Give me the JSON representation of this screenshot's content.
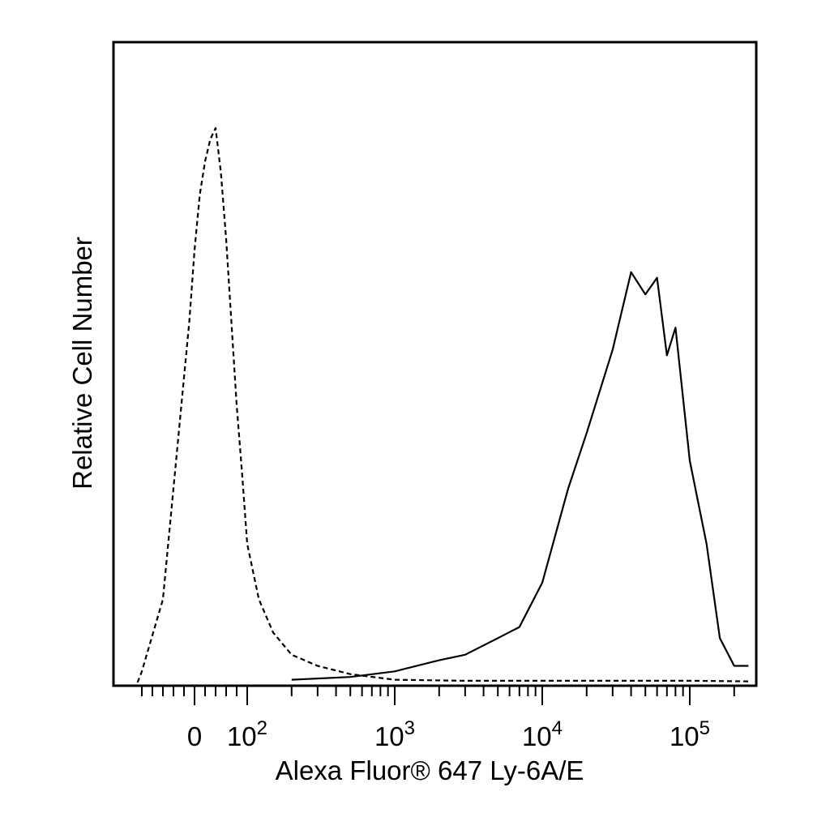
{
  "chart_data": {
    "type": "line",
    "xlabel": "Alexa Fluor® 647 Ly-6A/E",
    "ylabel": "Relative Cell Number",
    "x_scale": "biexponential (linear near 0, log above 10^2)",
    "xlim": [
      -200,
      250000
    ],
    "ylim": [
      0,
      100
    ],
    "y_ticks_shown": false,
    "grid": false,
    "legend": "none",
    "x_tick_labels": [
      {
        "value": 0,
        "base": "0",
        "exp": ""
      },
      {
        "value": 100,
        "base": "10",
        "exp": "2"
      },
      {
        "value": 1000,
        "base": "10",
        "exp": "3"
      },
      {
        "value": 10000,
        "base": "10",
        "exp": "4"
      },
      {
        "value": 100000,
        "base": "10",
        "exp": "5"
      }
    ],
    "series": [
      {
        "style": "dashed",
        "x": [
          -150,
          -100,
          -60,
          -30,
          -10,
          0,
          10,
          20,
          30,
          40,
          50,
          60,
          70,
          80,
          90,
          100,
          120,
          150,
          200,
          300,
          500,
          1000,
          3000,
          10000,
          100000,
          250000
        ],
        "y": [
          0,
          2,
          15,
          45,
          65,
          78,
          88,
          94,
          98,
          100,
          92,
          80,
          65,
          50,
          38,
          25,
          15,
          9,
          5,
          3,
          1.5,
          0.5,
          0.3,
          0.3,
          0.3,
          0.2
        ]
      },
      {
        "style": "solid",
        "x": [
          200,
          500,
          1000,
          2000,
          3000,
          5000,
          7000,
          10000,
          15000,
          20000,
          30000,
          40000,
          50000,
          60000,
          70000,
          80000,
          100000,
          130000,
          160000,
          200000,
          250000
        ],
        "y": [
          0.5,
          1,
          2,
          4,
          5,
          8,
          10,
          18,
          35,
          45,
          60,
          74,
          70,
          73,
          59,
          64,
          40,
          25,
          8,
          3,
          3
        ]
      }
    ]
  }
}
